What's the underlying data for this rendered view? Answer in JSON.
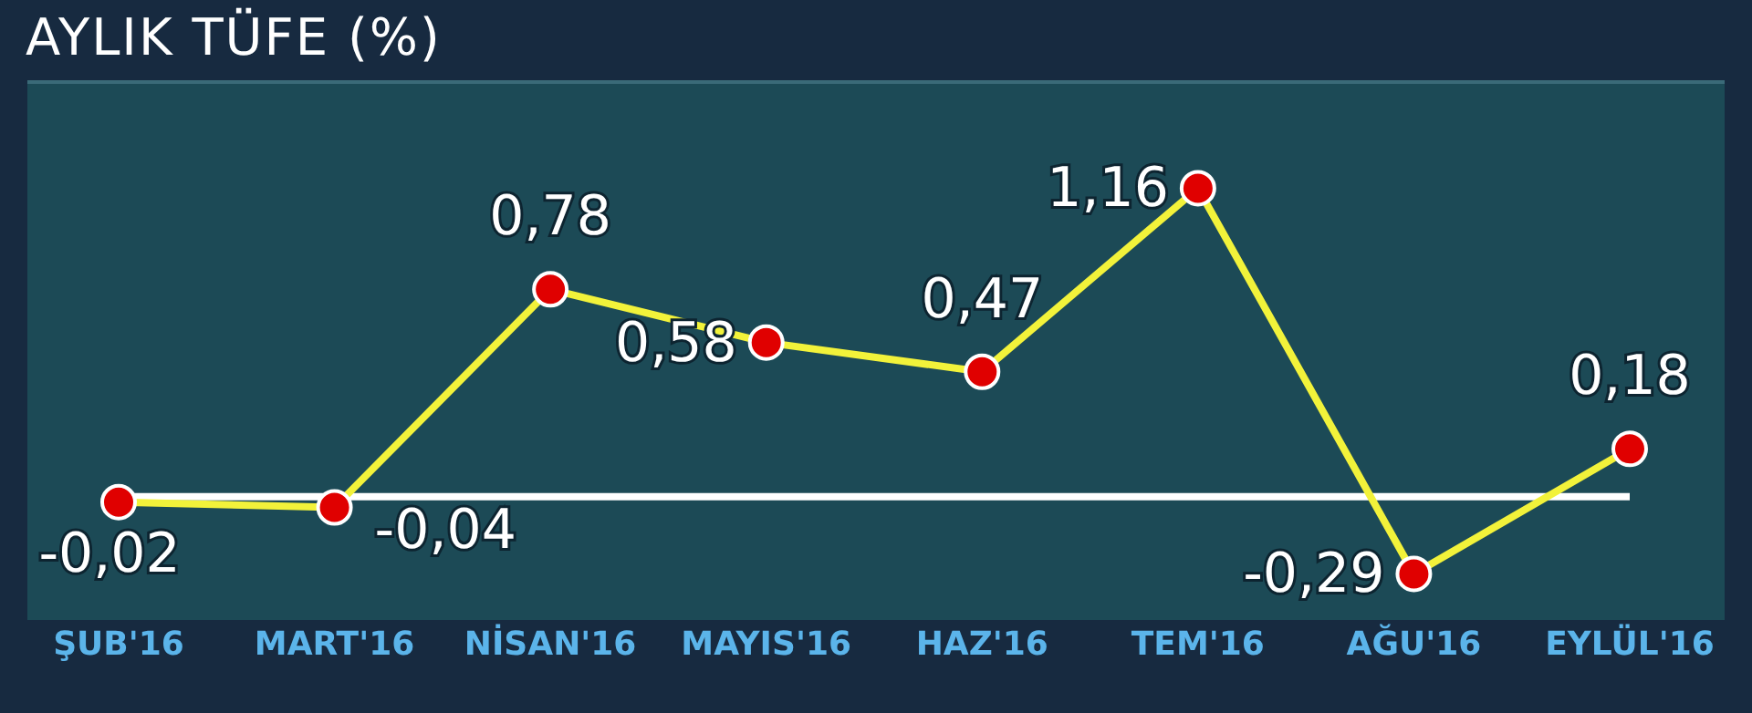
{
  "chart_data": {
    "type": "line",
    "title": "AYLIK TÜFE (%)",
    "categories": [
      "ŞUB'16",
      "MART'16",
      "NİSAN'16",
      "MAYIS'16",
      "HAZ'16",
      "TEM'16",
      "AĞU'16",
      "EYLÜL'16"
    ],
    "series": [
      {
        "color": "#f2f23a",
        "values": [
          -0.02,
          -0.04,
          0.78,
          0.58,
          0.47,
          1.16,
          -0.29,
          0.18
        ],
        "value_labels": [
          "-0,02",
          "-0,04",
          "0,78",
          "0,58",
          "0,47",
          "1,16",
          "-0,29",
          "0,18"
        ]
      }
    ],
    "marker": "circle",
    "ref_lines": [
      {
        "axis": "y",
        "value": 0,
        "color": "#ffffff"
      }
    ],
    "grid": false
  }
}
